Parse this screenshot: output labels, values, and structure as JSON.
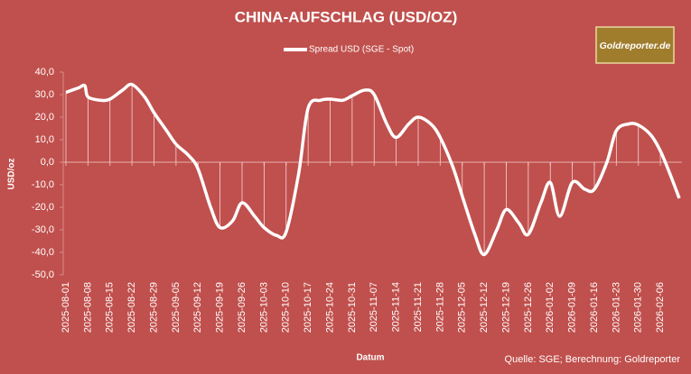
{
  "chart_data": {
    "type": "line",
    "title": "CHINA-AUFSCHLAG (USD/OZ)",
    "x_label": "Datum",
    "y_label": "USD/oz",
    "source": "Quelle: SGE; Berechnung: Goldreporter",
    "logo": "Goldreporter.de",
    "xlim": [
      "2025-08-01",
      "2026-02-12"
    ],
    "xticks": [
      "2025-08-01",
      "2025-08-08",
      "2025-08-15",
      "2025-08-22",
      "2025-08-29",
      "2025-09-05",
      "2025-09-12",
      "2025-09-19",
      "2025-09-26",
      "2025-10-03",
      "2025-10-10",
      "2025-10-17",
      "2025-10-24",
      "2025-10-31",
      "2025-11-07",
      "2025-11-14",
      "2025-11-21",
      "2025-11-28",
      "2025-12-05",
      "2025-12-12",
      "2025-12-19",
      "2025-12-26",
      "2026-01-02",
      "2026-01-09",
      "2026-01-16",
      "2026-01-23",
      "2026-01-30",
      "2026-02-06"
    ],
    "ylim": [
      -50,
      40
    ],
    "yticks": [
      {
        "value": -50,
        "label": "-50,0"
      },
      {
        "value": -40,
        "label": "-40,0"
      },
      {
        "value": -30,
        "label": "-30,0"
      },
      {
        "value": -20,
        "label": "-20,0"
      },
      {
        "value": -10,
        "label": "-10,0"
      },
      {
        "value": 0,
        "label": "0,0"
      },
      {
        "value": 10,
        "label": "10,0"
      },
      {
        "value": 20,
        "label": "20,0"
      },
      {
        "value": 30,
        "label": "30,0"
      },
      {
        "value": 40,
        "label": "40,0"
      }
    ],
    "x": [
      "2025-08-01",
      "2025-08-05",
      "2025-08-07",
      "2025-08-08",
      "2025-08-12",
      "2025-08-15",
      "2025-08-19",
      "2025-08-22",
      "2025-08-26",
      "2025-08-29",
      "2025-09-02",
      "2025-09-05",
      "2025-09-09",
      "2025-09-12",
      "2025-09-16",
      "2025-09-19",
      "2025-09-23",
      "2025-09-26",
      "2025-09-30",
      "2025-10-03",
      "2025-10-07",
      "2025-10-10",
      "2025-10-14",
      "2025-10-17",
      "2025-10-21",
      "2025-10-24",
      "2025-10-28",
      "2025-10-31",
      "2025-11-04",
      "2025-11-07",
      "2025-11-11",
      "2025-11-14",
      "2025-11-18",
      "2025-11-21",
      "2025-11-25",
      "2025-11-28",
      "2025-12-02",
      "2025-12-05",
      "2025-12-09",
      "2025-12-12",
      "2025-12-16",
      "2025-12-19",
      "2025-12-23",
      "2025-12-26",
      "2025-12-30",
      "2026-01-02",
      "2026-01-05",
      "2026-01-09",
      "2026-01-13",
      "2026-01-16",
      "2026-01-20",
      "2026-01-23",
      "2026-01-27",
      "2026-01-30",
      "2026-02-03",
      "2026-02-06",
      "2026-02-09",
      "2026-02-12"
    ],
    "series": [
      {
        "name": "Spread USD (SGE - Spot)",
        "color": "#ffffff",
        "values": [
          31,
          33,
          34,
          29,
          27.5,
          28,
          32,
          34.5,
          29,
          22,
          14,
          8,
          3,
          -3,
          -20,
          -29,
          -26,
          -18,
          -24,
          -29,
          -32.5,
          -31,
          -5,
          24,
          27.5,
          28,
          27.5,
          29.5,
          32,
          30,
          17,
          11,
          17,
          20,
          17,
          11,
          -2,
          -15,
          -32,
          -41,
          -30,
          -21,
          -27,
          -32,
          -18,
          -9,
          -24,
          -9,
          -12,
          -12,
          0,
          14,
          17,
          16.5,
          12,
          5,
          -5,
          -16
        ]
      }
    ]
  }
}
